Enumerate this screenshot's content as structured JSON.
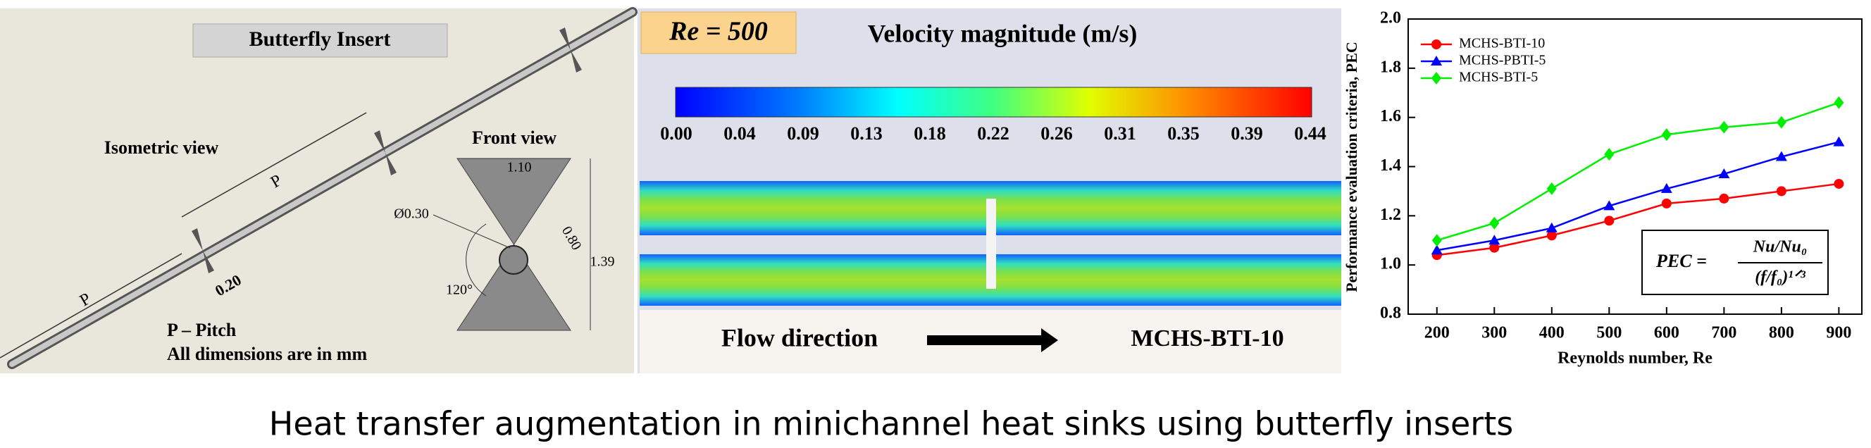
{
  "left_panel": {
    "title": "Butterfly Insert",
    "isometric_label": "Isometric view",
    "front_label": "Front view",
    "pitch_labels": [
      "P",
      "P"
    ],
    "thickness": "0.20",
    "legend_lines": [
      "P – Pitch",
      "All dimensions are in mm"
    ],
    "front_dims": {
      "width": "1.10",
      "hole": "Ø0.30",
      "edge": "0.80",
      "angle": "120°",
      "height": "1.39"
    }
  },
  "middle_panel": {
    "re_label": "Re = 500",
    "title": "Velocity magnitude (m/s)",
    "colorbar_ticks": [
      "0.00",
      "0.04",
      "0.09",
      "0.13",
      "0.18",
      "0.22",
      "0.26",
      "0.31",
      "0.35",
      "0.39",
      "0.44"
    ],
    "flow_label": "Flow direction",
    "case_label": "MCHS-BTI-10"
  },
  "chart_data": {
    "type": "line",
    "x_label": "Reynolds number, Re",
    "y_label": "Performance evaluation criteria, PEC",
    "x": [
      200,
      300,
      400,
      500,
      600,
      700,
      800,
      900
    ],
    "series": [
      {
        "name": "MCHS-BTI-10",
        "color": "#ff0000",
        "marker": "circle",
        "values": [
          1.04,
          1.07,
          1.12,
          1.18,
          1.25,
          1.27,
          1.3,
          1.33
        ]
      },
      {
        "name": "MCHS-PBTI-5",
        "color": "#0000ff",
        "marker": "triangle",
        "values": [
          1.06,
          1.1,
          1.15,
          1.24,
          1.31,
          1.37,
          1.44,
          1.5
        ]
      },
      {
        "name": "MCHS-BTI-5",
        "color": "#00ee00",
        "marker": "diamond",
        "values": [
          1.1,
          1.17,
          1.31,
          1.45,
          1.53,
          1.56,
          1.58,
          1.66
        ]
      }
    ],
    "xlim": [
      150,
      940
    ],
    "xticks": [
      200,
      300,
      400,
      500,
      600,
      700,
      800,
      900
    ],
    "ylim": [
      0.8,
      2.0
    ],
    "yticks": [
      0.8,
      {
        "value": 1.0,
        "label": "1.0"
      },
      1.2,
      1.4,
      1.6,
      1.8,
      {
        "value": 2.0,
        "label": "2.0"
      }
    ],
    "legend": "upper left",
    "annotation": {
      "lhs": "PEC =",
      "numerator": "Nu/Nu₀",
      "denominator": "(f/f₀)¹ᐟ³"
    }
  },
  "caption": "Heat transfer augmentation in minichannel heat sinks using butterfly inserts"
}
